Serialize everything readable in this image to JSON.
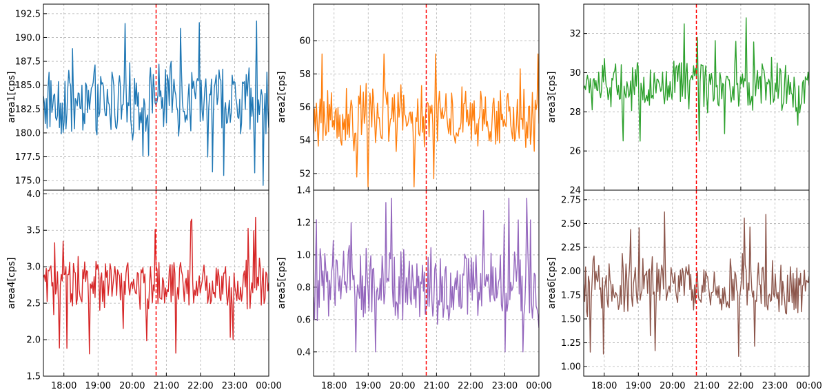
{
  "figure": {
    "x_tick_labels": [
      "18:00",
      "19:00",
      "20:00",
      "21:00",
      "22:00",
      "23:00",
      "00:00"
    ],
    "marker_color": "#ff0000",
    "grid_color": "#b0b0b0"
  },
  "chart_data": [
    {
      "type": "line",
      "ylabel": "area1[cps]",
      "color": "#1f77b4",
      "ylim": [
        174,
        193.5
      ],
      "yticks": [
        175.0,
        177.5,
        180.0,
        182.5,
        185.0,
        187.5,
        190.0,
        192.5
      ],
      "ytick_labels": [
        "175.0",
        "177.5",
        "180.0",
        "182.5",
        "185.0",
        "187.5",
        "190.0",
        "192.5"
      ],
      "xlim": [
        "17:24",
        "00:00"
      ],
      "marker_time": "20:42",
      "mean": 183.3,
      "amplitude": 3.0,
      "low": 174.5,
      "high": 192.9,
      "grid": true
    },
    {
      "type": "line",
      "ylabel": "area2[cps]",
      "color": "#ff7f0e",
      "ylim": [
        51,
        62.2
      ],
      "yticks": [
        52,
        54,
        56,
        58,
        60
      ],
      "ytick_labels": [
        "52",
        "54",
        "56",
        "58",
        "60"
      ],
      "xlim": [
        "17:24",
        "00:00"
      ],
      "marker_time": "20:42",
      "mean": 55.3,
      "amplitude": 1.6,
      "low": 51.2,
      "high": 59.2,
      "grid": true
    },
    {
      "type": "line",
      "ylabel": "area3[cps]",
      "color": "#2ca02c",
      "ylim": [
        24,
        33.5
      ],
      "yticks": [
        24,
        26,
        28,
        30,
        32
      ],
      "ytick_labels": [
        "24",
        "26",
        "28",
        "30",
        "32"
      ],
      "xlim": [
        "17:24",
        "00:00"
      ],
      "marker_time": "20:42",
      "mean": 29.3,
      "amplitude": 1.1,
      "low": 26.5,
      "high": 33.0,
      "grid": true
    },
    {
      "type": "line",
      "ylabel": "area4[cps]",
      "color": "#d62728",
      "ylim": [
        1.5,
        4.05
      ],
      "yticks": [
        1.5,
        2.0,
        2.5,
        3.0,
        3.5,
        4.0
      ],
      "ytick_labels": [
        "1.5",
        "2.0",
        "2.5",
        "3.0",
        "3.5",
        "4.0"
      ],
      "xlim": [
        "17:24",
        "00:00"
      ],
      "marker_time": "20:42",
      "mean": 2.75,
      "amplitude": 0.3,
      "low": 1.55,
      "high": 3.75,
      "grid": true
    },
    {
      "type": "line",
      "ylabel": "area5[cps]",
      "color": "#9467bd",
      "ylim": [
        0.25,
        1.4
      ],
      "yticks": [
        0.4,
        0.6,
        0.8,
        1.0,
        1.2,
        1.4
      ],
      "ytick_labels": [
        "0.4",
        "0.6",
        "0.8",
        "1.0",
        "1.2",
        "1.4"
      ],
      "xlim": [
        "17:24",
        "00:00"
      ],
      "marker_time": "20:42",
      "mean": 0.82,
      "amplitude": 0.2,
      "low": 0.4,
      "high": 1.35,
      "grid": true
    },
    {
      "type": "line",
      "ylabel": "area6[cps]",
      "color": "#8c564b",
      "ylim": [
        0.9,
        2.85
      ],
      "yticks": [
        1.0,
        1.25,
        1.5,
        1.75,
        2.0,
        2.25,
        2.5,
        2.75
      ],
      "ytick_labels": [
        "1.00",
        "1.25",
        "1.50",
        "1.75",
        "2.00",
        "2.25",
        "2.50",
        "2.75"
      ],
      "xlim": [
        "17:24",
        "00:00"
      ],
      "marker_time": "20:42",
      "mean": 1.85,
      "amplitude": 0.25,
      "low": 0.95,
      "high": 2.8,
      "grid": true
    }
  ]
}
